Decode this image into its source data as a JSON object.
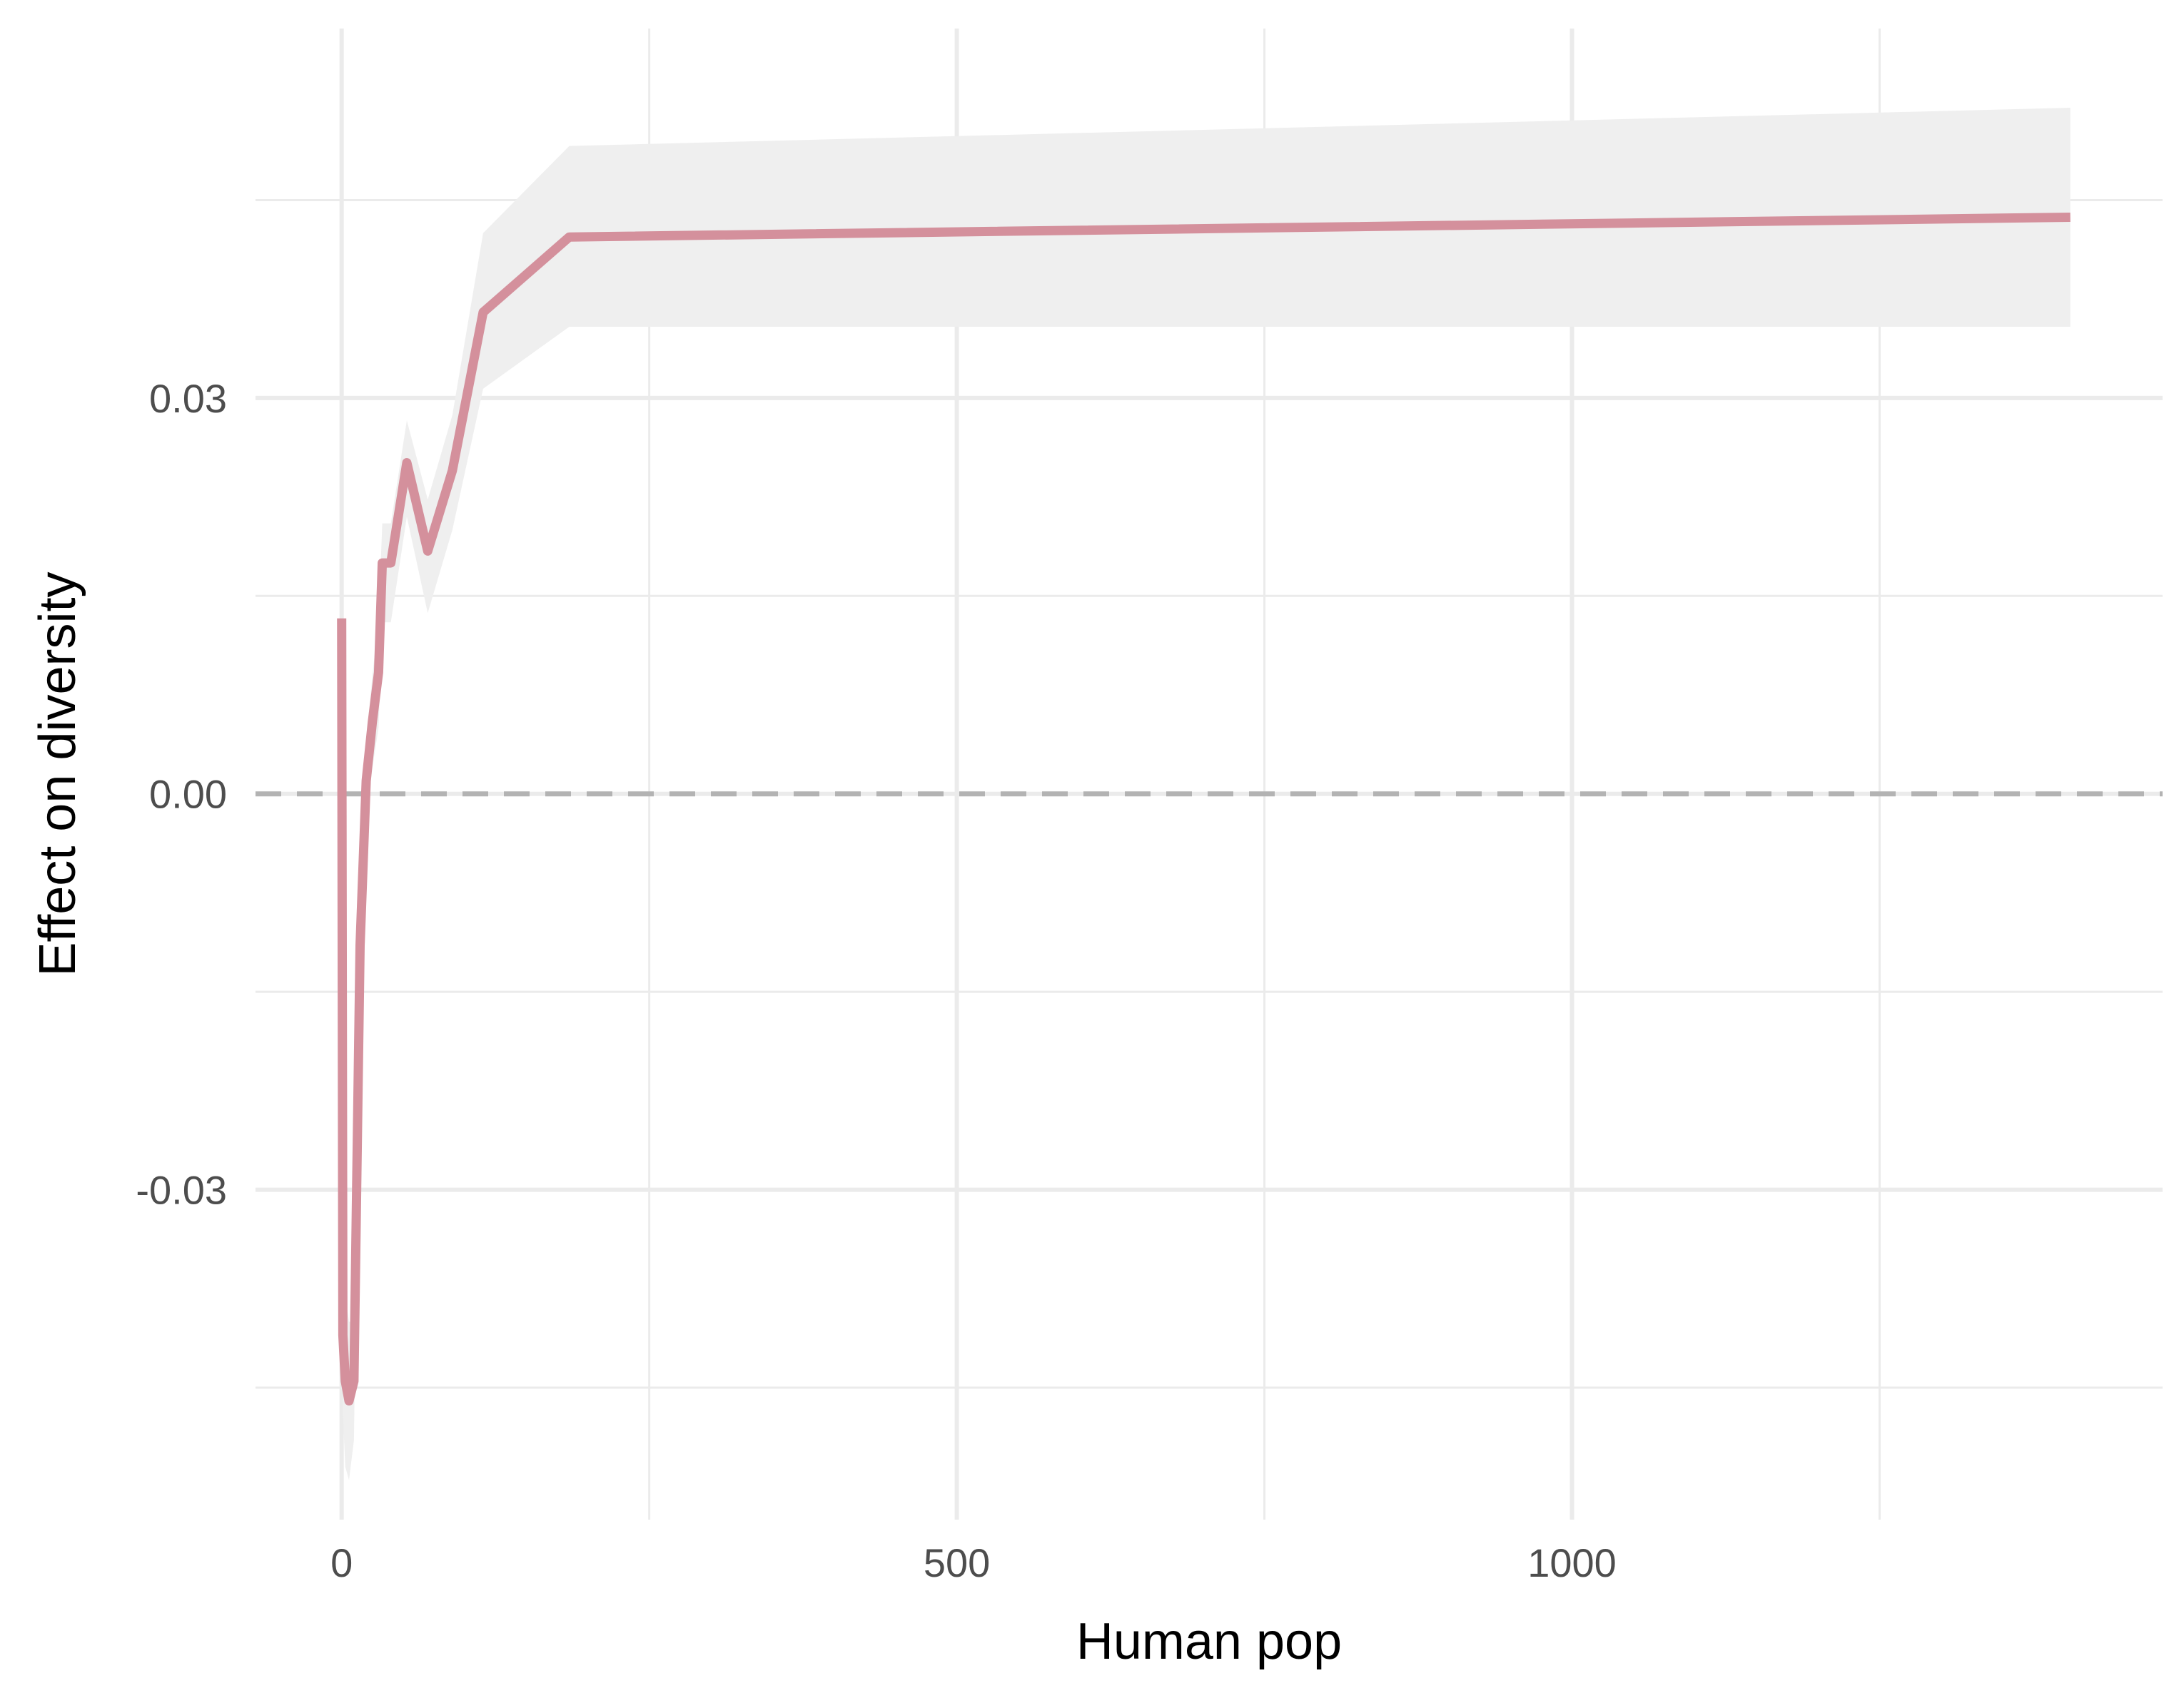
{
  "chart_data": {
    "type": "line",
    "title": "",
    "xlabel": "Human pop",
    "ylabel": "Effect on diversity",
    "xlim": [
      -70,
      1480
    ],
    "ylim": [
      -0.055,
      0.058
    ],
    "x_ticks": [
      0,
      500,
      1000
    ],
    "x_minor_ticks": [
      250,
      750,
      1250
    ],
    "y_ticks": [
      -0.03,
      0,
      0.03
    ],
    "y_tick_labels": [
      "-0.03",
      "0.00",
      "0.03"
    ],
    "y_minor_ticks": [
      -0.045,
      -0.015,
      0.015,
      0.045
    ],
    "grid": true,
    "legend": "none",
    "reference_line": {
      "y": 0,
      "style": "dashed",
      "color": "#b3b3b3"
    },
    "colors": {
      "line": "#d4909c",
      "ribbon": "#efefef",
      "grid": "#ebebeb"
    },
    "series": [
      {
        "x": [
          0,
          1,
          3,
          6,
          10,
          15,
          20,
          25,
          30,
          33,
          35,
          40,
          53,
          70,
          90,
          115,
          185,
          1405
        ],
        "y": [
          0.0133,
          -0.041,
          -0.0445,
          -0.046,
          -0.0445,
          -0.0115,
          0.001,
          0.0055,
          0.0092,
          0.0175,
          0.0175,
          0.0175,
          0.0251,
          0.0184,
          0.0245,
          0.0365,
          0.0422,
          0.0437
        ],
        "lower": [
          0.0133,
          -0.047,
          -0.051,
          -0.052,
          -0.049,
          -0.015,
          -0.002,
          0.002,
          0.005,
          0.013,
          0.013,
          0.013,
          0.021,
          0.0137,
          0.02,
          0.0307,
          0.0354,
          0.0354
        ],
        "upper": [
          0.0133,
          -0.035,
          -0.038,
          -0.04,
          -0.04,
          -0.008,
          0.004,
          0.009,
          0.0133,
          0.0205,
          0.0205,
          0.0205,
          0.0283,
          0.0223,
          0.0287,
          0.0425,
          0.0491,
          0.052
        ]
      }
    ]
  }
}
